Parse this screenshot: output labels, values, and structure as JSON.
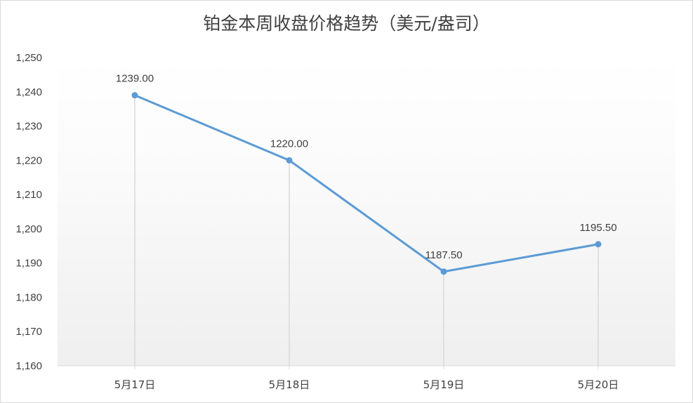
{
  "chart_data": {
    "type": "line",
    "title": "铂金本周收盘价格趋势（美元/盎司）",
    "xlabel": "",
    "ylabel": "",
    "categories": [
      "5月17日",
      "5月18日",
      "5月19日",
      "5月20日"
    ],
    "series": [
      {
        "values": [
          1239.0,
          1220.0,
          1187.5,
          1195.5
        ]
      }
    ],
    "data_labels": [
      "1239.00",
      "1220.00",
      "1187.50",
      "1195.50"
    ],
    "ylim": [
      1160,
      1250
    ],
    "yticks": [
      1160,
      1170,
      1180,
      1190,
      1200,
      1210,
      1220,
      1230,
      1240,
      1250
    ],
    "ytick_labels": [
      "1,160",
      "1,170",
      "1,180",
      "1,190",
      "1,200",
      "1,210",
      "1,220",
      "1,230",
      "1,240",
      "1,250"
    ],
    "grid": false,
    "drop_lines": true,
    "line_color": "#5b9bd5",
    "drop_line_color": "#d9d9d9",
    "legend": "none"
  }
}
